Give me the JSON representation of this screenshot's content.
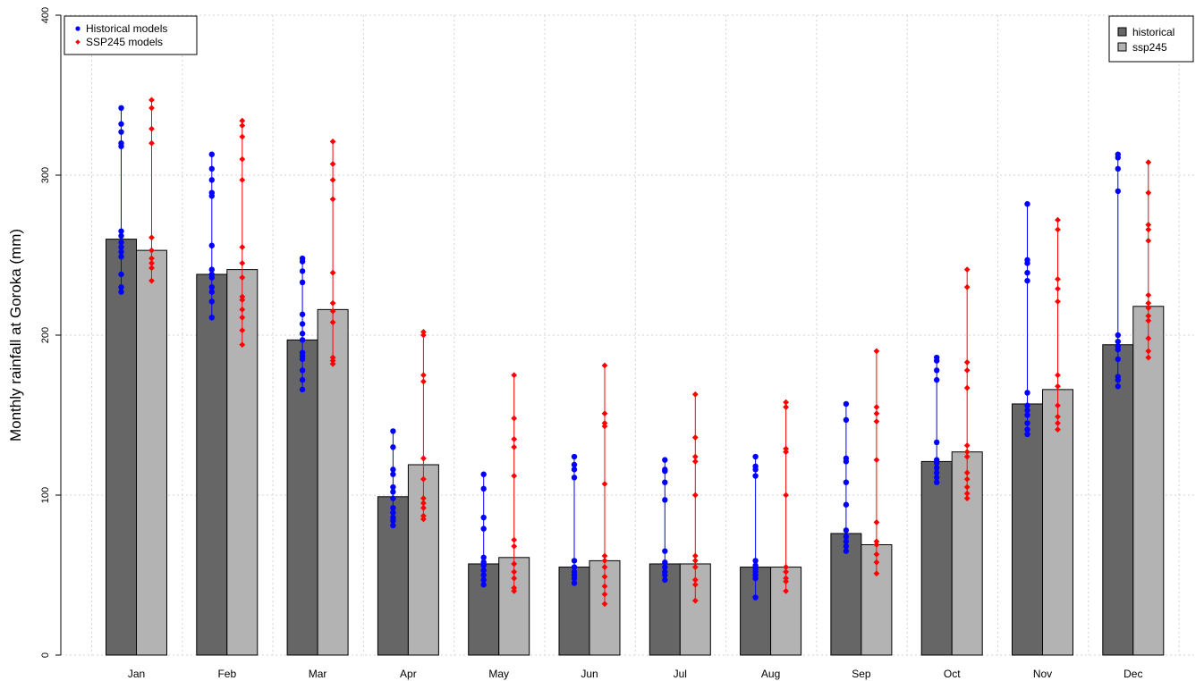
{
  "chart_data": {
    "type": "bar",
    "ylabel": "Monthly rainfall at Goroka (mm)",
    "ylim": [
      0,
      400
    ],
    "yticks": [
      0,
      100,
      200,
      300,
      400
    ],
    "grid": true,
    "categories": [
      "Jan",
      "Feb",
      "Mar",
      "Apr",
      "May",
      "Jun",
      "Jul",
      "Aug",
      "Sep",
      "Oct",
      "Nov",
      "Dec"
    ],
    "series": [
      {
        "name": "historical",
        "color": "#666666",
        "values": [
          260,
          238,
          197,
          99,
          57,
          55,
          57,
          55,
          76,
          121,
          157,
          194
        ]
      },
      {
        "name": "ssp245",
        "color": "#b3b3b3",
        "values": [
          253,
          241,
          216,
          119,
          61,
          59,
          57,
          55,
          69,
          127,
          166,
          218
        ]
      }
    ],
    "model_points": {
      "historical": {
        "name": "Historical models",
        "color": "#0000ff",
        "values": [
          [
            342,
            332,
            327,
            320,
            318,
            265,
            262,
            258,
            255,
            252,
            249,
            238,
            230,
            227
          ],
          [
            313,
            304,
            297,
            289,
            287,
            256,
            241,
            238,
            236,
            230,
            227,
            221,
            211
          ],
          [
            248,
            246,
            240,
            233,
            213,
            207,
            201,
            197,
            189,
            187,
            185,
            178,
            172,
            166
          ],
          [
            140,
            130,
            116,
            113,
            105,
            102,
            98,
            92,
            89,
            86,
            84,
            81
          ],
          [
            113,
            104,
            86,
            79,
            61,
            58,
            56,
            53,
            50,
            47,
            44
          ],
          [
            124,
            119,
            116,
            111,
            59,
            55,
            52,
            50,
            48,
            45
          ],
          [
            122,
            116,
            115,
            108,
            97,
            65,
            58,
            55,
            52,
            50,
            47
          ],
          [
            124,
            118,
            116,
            112,
            59,
            56,
            54,
            52,
            50,
            48,
            36
          ],
          [
            157,
            147,
            123,
            121,
            108,
            94,
            78,
            74,
            71,
            68,
            65
          ],
          [
            186,
            184,
            178,
            172,
            133,
            122,
            120,
            117,
            114,
            111,
            108
          ],
          [
            282,
            247,
            245,
            239,
            234,
            164,
            156,
            153,
            150,
            145,
            141,
            138
          ],
          [
            313,
            311,
            304,
            290,
            200,
            196,
            193,
            191,
            185,
            174,
            172,
            168
          ]
        ]
      },
      "ssp245": {
        "name": "SSP245 models",
        "color": "#ff0000",
        "values": [
          [
            347,
            342,
            329,
            320,
            261,
            253,
            248,
            245,
            242,
            234
          ],
          [
            334,
            331,
            324,
            310,
            297,
            255,
            245,
            236,
            224,
            222,
            216,
            211,
            203,
            194
          ],
          [
            321,
            307,
            297,
            285,
            239,
            220,
            215,
            208,
            186,
            184,
            182
          ],
          [
            202,
            200,
            175,
            171,
            123,
            110,
            98,
            95,
            92,
            87,
            85
          ],
          [
            175,
            148,
            135,
            130,
            112,
            72,
            68,
            57,
            52,
            48,
            42,
            40
          ],
          [
            181,
            151,
            145,
            143,
            107,
            62,
            59,
            55,
            49,
            43,
            38,
            32
          ],
          [
            163,
            136,
            124,
            121,
            100,
            62,
            59,
            55,
            47,
            44,
            34
          ],
          [
            158,
            155,
            129,
            127,
            100,
            55,
            52,
            48,
            46,
            40
          ],
          [
            190,
            155,
            151,
            146,
            122,
            83,
            71,
            69,
            63,
            58,
            51
          ],
          [
            241,
            230,
            183,
            178,
            167,
            131,
            127,
            124,
            114,
            110,
            105,
            101,
            98
          ],
          [
            272,
            266,
            235,
            229,
            221,
            175,
            168,
            156,
            149,
            145,
            141
          ],
          [
            308,
            289,
            269,
            266,
            259,
            225,
            220,
            217,
            212,
            209,
            198,
            190,
            186
          ]
        ]
      }
    },
    "legends": {
      "points": {
        "position": "top-left",
        "entries": [
          {
            "label": "Historical models",
            "color": "#0000ff"
          },
          {
            "label": "SSP245 models",
            "color": "#ff0000"
          }
        ]
      },
      "bars": {
        "position": "top-right",
        "entries": [
          {
            "label": "historical",
            "color": "#666666"
          },
          {
            "label": "ssp245",
            "color": "#b3b3b3"
          }
        ]
      }
    }
  }
}
